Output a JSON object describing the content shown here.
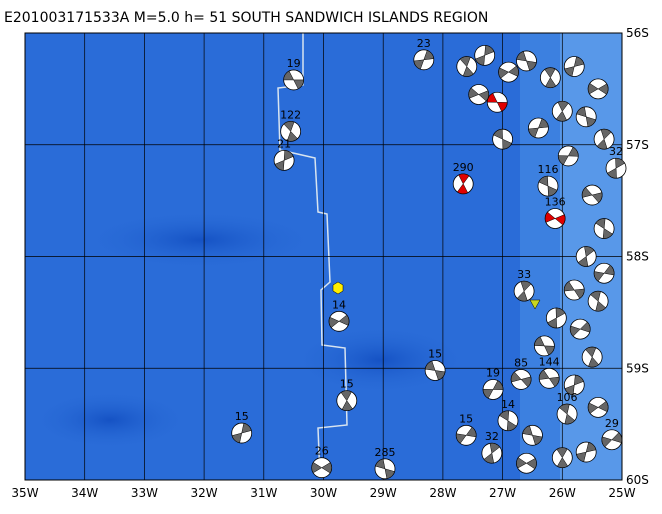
{
  "map": {
    "title": "E201003171533A M=5.0 h= 51 SOUTH SANDWICH ISLANDS REGION",
    "xlim": [
      -35,
      -25
    ],
    "ylim": [
      -56,
      -60
    ],
    "xticks": [
      {
        "value": -35,
        "label": "35W"
      },
      {
        "value": -34,
        "label": "34W"
      },
      {
        "value": -33,
        "label": "33W"
      },
      {
        "value": -32,
        "label": "32W"
      },
      {
        "value": -31,
        "label": "31W"
      },
      {
        "value": -30,
        "label": "30W"
      },
      {
        "value": -29,
        "label": "29W"
      },
      {
        "value": -28,
        "label": "28W"
      },
      {
        "value": -27,
        "label": "27W"
      },
      {
        "value": -26,
        "label": "26W"
      },
      {
        "value": -25,
        "label": "25W"
      }
    ],
    "yticks": [
      {
        "value": -56,
        "label": "56S"
      },
      {
        "value": -57,
        "label": "57S"
      },
      {
        "value": -58,
        "label": "58S"
      },
      {
        "value": -59,
        "label": "59S"
      },
      {
        "value": -60,
        "label": "60S"
      }
    ],
    "events": [
      {
        "label": "19",
        "lon": -30.5,
        "lat": -56.42,
        "color": "#666666"
      },
      {
        "label": "122",
        "lon": -30.55,
        "lat": -56.88,
        "color": "#666666"
      },
      {
        "label": "21",
        "lon": -30.66,
        "lat": -57.14,
        "color": "#666666"
      },
      {
        "label": "14",
        "lon": -29.74,
        "lat": -58.58,
        "color": "#666666"
      },
      {
        "label": "15",
        "lon": -28.13,
        "lat": -59.02,
        "color": "#666666"
      },
      {
        "label": "15",
        "lon": -29.61,
        "lat": -59.29,
        "color": "#666666"
      },
      {
        "label": "15",
        "lon": -31.37,
        "lat": -59.58,
        "color": "#666666"
      },
      {
        "label": "26",
        "lon": -30.03,
        "lat": -59.89,
        "color": "#666666"
      },
      {
        "label": "285",
        "lon": -28.97,
        "lat": -59.9,
        "color": "#666666"
      },
      {
        "label": "290",
        "lon": -27.66,
        "lat": -57.35,
        "color": "#e00000"
      },
      {
        "label": "23",
        "lon": -28.32,
        "lat": -56.24,
        "color": "#666666"
      },
      {
        "label": "136",
        "lon": -26.12,
        "lat": -57.66,
        "color": "#e00000"
      },
      {
        "label": "116",
        "lon": -26.24,
        "lat": -57.37,
        "color": "#666666"
      },
      {
        "label": "33",
        "lon": -26.64,
        "lat": -58.31,
        "color": "#666666"
      },
      {
        "label": "19",
        "lon": -27.16,
        "lat": -59.19,
        "color": "#666666"
      },
      {
        "label": "85",
        "lon": -26.69,
        "lat": -59.1,
        "color": "#666666"
      },
      {
        "label": "14",
        "lon": -26.91,
        "lat": -59.47,
        "color": "#666666"
      },
      {
        "label": "32",
        "lon": -27.18,
        "lat": -59.76,
        "color": "#666666"
      },
      {
        "label": "15",
        "lon": -27.61,
        "lat": -59.6,
        "color": "#666666"
      },
      {
        "label": "144",
        "lon": -26.22,
        "lat": -59.09,
        "color": "#666666"
      },
      {
        "label": "106",
        "lon": -25.92,
        "lat": -59.41,
        "color": "#666666"
      },
      {
        "label": "32",
        "lon": -25.1,
        "lat": -57.21,
        "color": "#666666"
      },
      {
        "label": "29",
        "lon": -25.17,
        "lat": -59.64,
        "color": "#666666"
      },
      {
        "label": null,
        "lon": -27.09,
        "lat": -56.62,
        "color": "#e00000"
      },
      {
        "label": null,
        "lon": -27.6,
        "lat": -56.3,
        "color": "#666666"
      },
      {
        "label": null,
        "lon": -27.3,
        "lat": -56.2,
        "color": "#666666"
      },
      {
        "label": null,
        "lon": -26.9,
        "lat": -56.35,
        "color": "#666666"
      },
      {
        "label": null,
        "lon": -26.6,
        "lat": -56.25,
        "color": "#666666"
      },
      {
        "label": null,
        "lon": -26.2,
        "lat": -56.4,
        "color": "#666666"
      },
      {
        "label": null,
        "lon": -25.8,
        "lat": -56.3,
        "color": "#666666"
      },
      {
        "label": null,
        "lon": -25.4,
        "lat": -56.5,
        "color": "#666666"
      },
      {
        "label": null,
        "lon": -25.6,
        "lat": -56.75,
        "color": "#666666"
      },
      {
        "label": null,
        "lon": -26.0,
        "lat": -56.7,
        "color": "#666666"
      },
      {
        "label": null,
        "lon": -26.4,
        "lat": -56.85,
        "color": "#666666"
      },
      {
        "label": null,
        "lon": -27.4,
        "lat": -56.55,
        "color": "#666666"
      },
      {
        "label": null,
        "lon": -27.0,
        "lat": -56.95,
        "color": "#666666"
      },
      {
        "label": null,
        "lon": -25.3,
        "lat": -56.95,
        "color": "#666666"
      },
      {
        "label": null,
        "lon": -25.9,
        "lat": -57.1,
        "color": "#666666"
      },
      {
        "label": null,
        "lon": -25.5,
        "lat": -57.45,
        "color": "#666666"
      },
      {
        "label": null,
        "lon": -25.3,
        "lat": -57.75,
        "color": "#666666"
      },
      {
        "label": null,
        "lon": -25.6,
        "lat": -58.0,
        "color": "#666666"
      },
      {
        "label": null,
        "lon": -25.3,
        "lat": -58.15,
        "color": "#666666"
      },
      {
        "label": null,
        "lon": -25.8,
        "lat": -58.3,
        "color": "#666666"
      },
      {
        "label": null,
        "lon": -25.4,
        "lat": -58.4,
        "color": "#666666"
      },
      {
        "label": null,
        "lon": -26.1,
        "lat": -58.55,
        "color": "#666666"
      },
      {
        "label": null,
        "lon": -25.7,
        "lat": -58.65,
        "color": "#666666"
      },
      {
        "label": null,
        "lon": -26.3,
        "lat": -58.8,
        "color": "#666666"
      },
      {
        "label": null,
        "lon": -25.5,
        "lat": -58.9,
        "color": "#666666"
      },
      {
        "label": null,
        "lon": -25.8,
        "lat": -59.15,
        "color": "#666666"
      },
      {
        "label": null,
        "lon": -25.4,
        "lat": -59.35,
        "color": "#666666"
      },
      {
        "label": null,
        "lon": -26.5,
        "lat": -59.6,
        "color": "#666666"
      },
      {
        "label": null,
        "lon": -26.0,
        "lat": -59.8,
        "color": "#666666"
      },
      {
        "label": null,
        "lon": -25.6,
        "lat": -59.75,
        "color": "#666666"
      },
      {
        "label": null,
        "lon": -26.6,
        "lat": -59.85,
        "color": "#666666"
      }
    ]
  }
}
